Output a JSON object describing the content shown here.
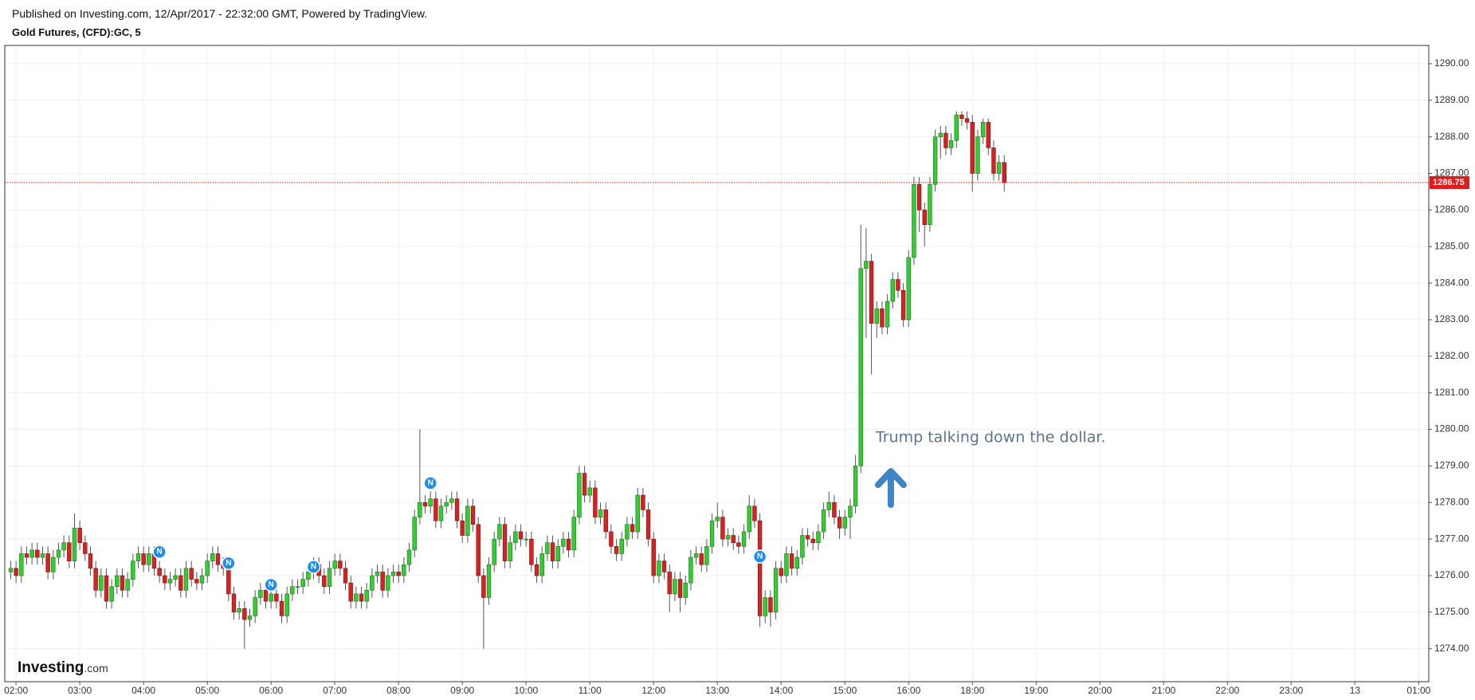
{
  "header": {
    "published": "Published on Investing.com, 12/Apr/2017 - 22:32:00 GMT, Powered by TradingView.",
    "symbol": "Gold Futures, (CFD):GC, 5"
  },
  "logo": {
    "brand": "Investing",
    "suffix": ".com"
  },
  "chart_data": {
    "type": "candlestick",
    "up_color": "#33cc33",
    "down_color": "#d42323",
    "wick_color": "#555555",
    "last_price_color": "#e01b1b",
    "grid": true,
    "xlim": [
      -1.12,
      266.9
    ],
    "xticks": [
      {
        "value": 1,
        "label": "02:00"
      },
      {
        "value": 13,
        "label": "03:00"
      },
      {
        "value": 25,
        "label": "04:00"
      },
      {
        "value": 37,
        "label": "05:00"
      },
      {
        "value": 49,
        "label": "06:00"
      },
      {
        "value": 61,
        "label": "07:00"
      },
      {
        "value": 73,
        "label": "08:00"
      },
      {
        "value": 85,
        "label": "09:00"
      },
      {
        "value": 97,
        "label": "10:00"
      },
      {
        "value": 109,
        "label": "11:00"
      },
      {
        "value": 121,
        "label": "12:00"
      },
      {
        "value": 133,
        "label": "13:00"
      },
      {
        "value": 145,
        "label": "14:00"
      },
      {
        "value": 157,
        "label": "15:00"
      },
      {
        "value": 169,
        "label": "16:00"
      },
      {
        "value": 181,
        "label": "18:00"
      },
      {
        "value": 193,
        "label": "19:00"
      },
      {
        "value": 205,
        "label": "20:00"
      },
      {
        "value": 217,
        "label": "21:00"
      },
      {
        "value": 229,
        "label": "22:00"
      },
      {
        "value": 241,
        "label": "23:00"
      },
      {
        "value": 253,
        "label": "13"
      },
      {
        "value": 265,
        "label": "01:00"
      }
    ],
    "ylim": [
      1273.1,
      1290.5
    ],
    "yticks": [
      {
        "value": 1274,
        "label": "1274.00"
      },
      {
        "value": 1275,
        "label": "1275.00"
      },
      {
        "value": 1276,
        "label": "1276.00"
      },
      {
        "value": 1277,
        "label": "1277.00"
      },
      {
        "value": 1278,
        "label": "1278.00"
      },
      {
        "value": 1279,
        "label": "1279.00"
      },
      {
        "value": 1280,
        "label": "1280.00"
      },
      {
        "value": 1281,
        "label": "1281.00"
      },
      {
        "value": 1282,
        "label": "1282.00"
      },
      {
        "value": 1283,
        "label": "1283.00"
      },
      {
        "value": 1284,
        "label": "1284.00"
      },
      {
        "value": 1285,
        "label": "1285.00"
      },
      {
        "value": 1286,
        "label": "1286.00"
      },
      {
        "value": 1287,
        "label": "1287.00"
      },
      {
        "value": 1288,
        "label": "1288.00"
      },
      {
        "value": 1289,
        "label": "1289.00"
      },
      {
        "value": 1290,
        "label": "1290.00"
      }
    ],
    "last_price": 1286.75,
    "annotation": {
      "text": "Trump talking down the dollar.",
      "x": 162.8,
      "y": 1279.77
    },
    "news": [
      {
        "x": 28,
        "y": 1276.65,
        "label": "N"
      },
      {
        "x": 41,
        "y": 1276.34,
        "label": "N"
      },
      {
        "x": 49,
        "y": 1275.75,
        "label": "N"
      },
      {
        "x": 57,
        "y": 1276.24,
        "label": "N"
      },
      {
        "x": 79,
        "y": 1278.53,
        "label": "N"
      },
      {
        "x": 141,
        "y": 1276.52,
        "label": "N"
      }
    ],
    "candles": [
      [
        1276.1,
        1276.4,
        1275.9,
        1276.2
      ],
      [
        1276.2,
        1276.4,
        1275.8,
        1276.0
      ],
      [
        1276.0,
        1276.8,
        1275.8,
        1276.6
      ],
      [
        1276.6,
        1276.8,
        1276.3,
        1276.5
      ],
      [
        1276.5,
        1276.9,
        1276.3,
        1276.7
      ],
      [
        1276.7,
        1276.9,
        1276.3,
        1276.5
      ],
      [
        1276.5,
        1276.8,
        1276.3,
        1276.6
      ],
      [
        1276.6,
        1276.8,
        1275.9,
        1276.1
      ],
      [
        1276.1,
        1276.7,
        1275.9,
        1276.5
      ],
      [
        1276.5,
        1276.9,
        1276.3,
        1276.7
      ],
      [
        1276.7,
        1277.1,
        1276.5,
        1276.9
      ],
      [
        1276.9,
        1277.1,
        1276.2,
        1276.4
      ],
      [
        1276.4,
        1277.7,
        1276.2,
        1277.3
      ],
      [
        1277.3,
        1277.5,
        1276.7,
        1276.9
      ],
      [
        1276.9,
        1277.1,
        1276.4,
        1276.6
      ],
      [
        1276.6,
        1276.8,
        1276.0,
        1276.2
      ],
      [
        1276.2,
        1276.4,
        1275.4,
        1275.6
      ],
      [
        1275.6,
        1276.2,
        1275.4,
        1276.0
      ],
      [
        1276.0,
        1276.2,
        1275.1,
        1275.3
      ],
      [
        1275.3,
        1275.9,
        1275.1,
        1275.7
      ],
      [
        1275.7,
        1276.2,
        1275.5,
        1276.0
      ],
      [
        1276.0,
        1276.2,
        1275.4,
        1275.6
      ],
      [
        1275.6,
        1276.1,
        1275.4,
        1275.9
      ],
      [
        1275.9,
        1276.6,
        1275.7,
        1276.4
      ],
      [
        1276.4,
        1276.8,
        1276.2,
        1276.6
      ],
      [
        1276.6,
        1276.8,
        1276.1,
        1276.3
      ],
      [
        1276.3,
        1276.8,
        1276.1,
        1276.6
      ],
      [
        1276.6,
        1276.8,
        1276.0,
        1276.2
      ],
      [
        1276.2,
        1276.4,
        1275.8,
        1276.0
      ],
      [
        1276.0,
        1276.2,
        1275.6,
        1275.8
      ],
      [
        1275.8,
        1276.1,
        1275.6,
        1275.9
      ],
      [
        1275.9,
        1276.2,
        1275.7,
        1276.0
      ],
      [
        1276.0,
        1276.2,
        1275.4,
        1275.6
      ],
      [
        1275.6,
        1276.4,
        1275.4,
        1276.2
      ],
      [
        1276.2,
        1276.4,
        1275.7,
        1275.9
      ],
      [
        1275.9,
        1276.1,
        1275.6,
        1275.8
      ],
      [
        1275.8,
        1276.2,
        1275.6,
        1276.0
      ],
      [
        1276.0,
        1276.6,
        1275.8,
        1276.4
      ],
      [
        1276.4,
        1276.8,
        1276.2,
        1276.6
      ],
      [
        1276.6,
        1276.8,
        1276.1,
        1276.3
      ],
      [
        1276.3,
        1276.5,
        1276.0,
        1276.2
      ],
      [
        1276.2,
        1276.4,
        1275.3,
        1275.5
      ],
      [
        1275.5,
        1275.7,
        1274.8,
        1275.0
      ],
      [
        1275.0,
        1275.3,
        1274.8,
        1275.1
      ],
      [
        1275.1,
        1275.3,
        1274.0,
        1274.8
      ],
      [
        1274.8,
        1275.1,
        1274.6,
        1274.9
      ],
      [
        1274.9,
        1275.6,
        1274.7,
        1275.4
      ],
      [
        1275.4,
        1275.8,
        1275.2,
        1275.6
      ],
      [
        1275.6,
        1275.8,
        1275.1,
        1275.3
      ],
      [
        1275.3,
        1275.7,
        1275.1,
        1275.5
      ],
      [
        1275.5,
        1275.7,
        1275.1,
        1275.3
      ],
      [
        1275.3,
        1275.5,
        1274.7,
        1274.9
      ],
      [
        1274.9,
        1275.7,
        1274.7,
        1275.5
      ],
      [
        1275.5,
        1275.9,
        1275.3,
        1275.7
      ],
      [
        1275.7,
        1275.9,
        1275.5,
        1275.7
      ],
      [
        1275.7,
        1276.1,
        1275.5,
        1275.9
      ],
      [
        1275.9,
        1276.3,
        1275.7,
        1276.1
      ],
      [
        1276.1,
        1276.5,
        1275.9,
        1276.3
      ],
      [
        1276.3,
        1276.5,
        1275.8,
        1276.0
      ],
      [
        1276.0,
        1276.2,
        1275.5,
        1275.7
      ],
      [
        1275.7,
        1276.4,
        1275.5,
        1276.2
      ],
      [
        1276.2,
        1276.6,
        1276.0,
        1276.4
      ],
      [
        1276.4,
        1276.6,
        1276.0,
        1276.2
      ],
      [
        1276.2,
        1276.4,
        1275.6,
        1275.8
      ],
      [
        1275.8,
        1276.0,
        1275.1,
        1275.3
      ],
      [
        1275.3,
        1275.7,
        1275.1,
        1275.5
      ],
      [
        1275.5,
        1275.7,
        1275.1,
        1275.3
      ],
      [
        1275.3,
        1275.8,
        1275.1,
        1275.6
      ],
      [
        1275.6,
        1276.2,
        1275.4,
        1276.0
      ],
      [
        1276.0,
        1276.3,
        1275.8,
        1276.1
      ],
      [
        1276.1,
        1276.3,
        1275.4,
        1275.6
      ],
      [
        1275.6,
        1276.2,
        1275.4,
        1276.0
      ],
      [
        1276.0,
        1276.3,
        1275.8,
        1276.1
      ],
      [
        1276.1,
        1276.3,
        1275.8,
        1276.0
      ],
      [
        1276.0,
        1276.5,
        1275.8,
        1276.3
      ],
      [
        1276.3,
        1276.9,
        1276.1,
        1276.7
      ],
      [
        1276.7,
        1277.8,
        1276.5,
        1277.6
      ],
      [
        1277.6,
        1280.0,
        1277.4,
        1278.0
      ],
      [
        1278.0,
        1278.2,
        1277.7,
        1277.9
      ],
      [
        1277.9,
        1278.3,
        1277.7,
        1278.1
      ],
      [
        1278.1,
        1278.3,
        1277.3,
        1277.5
      ],
      [
        1277.5,
        1278.1,
        1277.3,
        1277.9
      ],
      [
        1277.9,
        1278.2,
        1277.7,
        1278.0
      ],
      [
        1278.0,
        1278.3,
        1277.8,
        1278.1
      ],
      [
        1278.1,
        1278.3,
        1277.3,
        1277.5
      ],
      [
        1277.5,
        1277.7,
        1276.9,
        1277.1
      ],
      [
        1277.1,
        1278.1,
        1276.9,
        1277.9
      ],
      [
        1277.9,
        1278.1,
        1277.2,
        1277.4
      ],
      [
        1277.4,
        1277.6,
        1275.8,
        1276.0
      ],
      [
        1276.0,
        1276.2,
        1274.0,
        1275.4
      ],
      [
        1275.4,
        1276.5,
        1275.2,
        1276.3
      ],
      [
        1276.3,
        1277.2,
        1276.1,
        1277.0
      ],
      [
        1277.0,
        1277.6,
        1276.8,
        1277.4
      ],
      [
        1277.4,
        1277.6,
        1276.2,
        1276.4
      ],
      [
        1276.4,
        1277.1,
        1276.2,
        1276.9
      ],
      [
        1276.9,
        1277.4,
        1276.7,
        1277.2
      ],
      [
        1277.2,
        1277.4,
        1276.8,
        1277.0
      ],
      [
        1277.0,
        1277.2,
        1276.8,
        1277.0
      ],
      [
        1277.0,
        1277.2,
        1276.1,
        1276.3
      ],
      [
        1276.3,
        1276.5,
        1275.8,
        1276.0
      ],
      [
        1276.0,
        1276.8,
        1275.8,
        1276.6
      ],
      [
        1276.6,
        1277.1,
        1276.4,
        1276.9
      ],
      [
        1276.9,
        1277.1,
        1276.2,
        1276.4
      ],
      [
        1276.4,
        1277.0,
        1276.2,
        1276.8
      ],
      [
        1276.8,
        1277.2,
        1276.6,
        1277.0
      ],
      [
        1277.0,
        1277.2,
        1276.5,
        1276.7
      ],
      [
        1276.7,
        1277.8,
        1276.5,
        1277.6
      ],
      [
        1277.6,
        1279.0,
        1277.4,
        1278.8
      ],
      [
        1278.8,
        1279.0,
        1278.0,
        1278.2
      ],
      [
        1278.2,
        1278.6,
        1278.0,
        1278.4
      ],
      [
        1278.4,
        1278.6,
        1277.4,
        1277.6
      ],
      [
        1277.6,
        1278.0,
        1277.4,
        1277.8
      ],
      [
        1277.8,
        1278.0,
        1277.0,
        1277.2
      ],
      [
        1277.2,
        1277.4,
        1276.6,
        1276.8
      ],
      [
        1276.8,
        1277.0,
        1276.4,
        1276.6
      ],
      [
        1276.6,
        1277.2,
        1276.4,
        1277.0
      ],
      [
        1277.0,
        1277.6,
        1276.8,
        1277.4
      ],
      [
        1277.4,
        1277.6,
        1277.0,
        1277.2
      ],
      [
        1277.2,
        1278.4,
        1277.0,
        1278.2
      ],
      [
        1278.2,
        1278.4,
        1277.6,
        1277.8
      ],
      [
        1277.8,
        1278.0,
        1276.8,
        1277.0
      ],
      [
        1277.0,
        1277.2,
        1275.8,
        1276.0
      ],
      [
        1276.0,
        1276.6,
        1275.8,
        1276.4
      ],
      [
        1276.4,
        1276.6,
        1275.9,
        1276.1
      ],
      [
        1276.1,
        1276.3,
        1275.0,
        1275.5
      ],
      [
        1275.5,
        1276.1,
        1275.3,
        1275.9
      ],
      [
        1275.9,
        1276.1,
        1275.0,
        1275.4
      ],
      [
        1275.4,
        1276.0,
        1275.2,
        1275.8
      ],
      [
        1275.8,
        1276.7,
        1275.6,
        1276.5
      ],
      [
        1276.5,
        1276.8,
        1276.3,
        1276.6
      ],
      [
        1276.6,
        1276.8,
        1276.1,
        1276.3
      ],
      [
        1276.3,
        1277.0,
        1276.1,
        1276.8
      ],
      [
        1276.8,
        1277.7,
        1276.6,
        1277.5
      ],
      [
        1277.5,
        1278.0,
        1277.3,
        1277.6
      ],
      [
        1277.6,
        1277.8,
        1276.8,
        1277.0
      ],
      [
        1277.0,
        1277.3,
        1276.8,
        1277.1
      ],
      [
        1277.1,
        1277.3,
        1276.7,
        1276.9
      ],
      [
        1276.9,
        1277.1,
        1276.6,
        1276.8
      ],
      [
        1276.8,
        1277.4,
        1276.6,
        1277.2
      ],
      [
        1277.2,
        1278.2,
        1277.0,
        1277.9
      ],
      [
        1277.9,
        1278.1,
        1277.3,
        1277.5
      ],
      [
        1277.5,
        1277.7,
        1274.6,
        1274.9
      ],
      [
        1274.9,
        1275.6,
        1274.7,
        1275.4
      ],
      [
        1275.4,
        1275.6,
        1274.6,
        1275.0
      ],
      [
        1275.0,
        1276.4,
        1274.8,
        1276.2
      ],
      [
        1276.2,
        1276.4,
        1275.8,
        1276.0
      ],
      [
        1276.0,
        1276.8,
        1275.8,
        1276.6
      ],
      [
        1276.6,
        1276.8,
        1276.0,
        1276.2
      ],
      [
        1276.2,
        1276.7,
        1276.0,
        1276.5
      ],
      [
        1276.5,
        1277.3,
        1276.3,
        1277.1
      ],
      [
        1277.1,
        1277.3,
        1276.8,
        1277.0
      ],
      [
        1277.0,
        1277.2,
        1276.7,
        1276.9
      ],
      [
        1276.9,
        1277.4,
        1276.7,
        1277.2
      ],
      [
        1277.2,
        1278.0,
        1277.0,
        1277.8
      ],
      [
        1277.8,
        1278.3,
        1277.6,
        1278.0
      ],
      [
        1278.0,
        1278.2,
        1277.4,
        1277.6
      ],
      [
        1277.6,
        1277.8,
        1277.0,
        1277.3
      ],
      [
        1277.3,
        1277.8,
        1277.1,
        1277.6
      ],
      [
        1277.6,
        1278.1,
        1277.0,
        1277.9
      ],
      [
        1277.9,
        1279.3,
        1277.7,
        1279.0
      ],
      [
        1279.0,
        1285.6,
        1278.8,
        1284.4
      ],
      [
        1284.4,
        1285.5,
        1282.5,
        1284.6
      ],
      [
        1284.6,
        1284.8,
        1281.5,
        1282.9
      ],
      [
        1282.9,
        1283.5,
        1282.5,
        1283.3
      ],
      [
        1283.3,
        1283.5,
        1282.6,
        1282.8
      ],
      [
        1282.8,
        1283.7,
        1282.6,
        1283.5
      ],
      [
        1283.5,
        1284.3,
        1283.3,
        1284.1
      ],
      [
        1284.1,
        1284.3,
        1283.6,
        1283.8
      ],
      [
        1283.8,
        1284.0,
        1282.8,
        1283.0
      ],
      [
        1283.0,
        1284.9,
        1282.8,
        1284.7
      ],
      [
        1284.7,
        1286.9,
        1284.5,
        1286.7
      ],
      [
        1286.7,
        1286.9,
        1285.4,
        1286.0
      ],
      [
        1286.0,
        1286.2,
        1285.0,
        1285.6
      ],
      [
        1285.6,
        1286.9,
        1285.4,
        1286.7
      ],
      [
        1286.7,
        1288.2,
        1286.5,
        1288.0
      ],
      [
        1288.0,
        1288.3,
        1287.4,
        1288.1
      ],
      [
        1288.1,
        1288.3,
        1287.5,
        1287.7
      ],
      [
        1287.7,
        1288.1,
        1287.5,
        1287.9
      ],
      [
        1287.9,
        1288.7,
        1287.7,
        1288.6
      ],
      [
        1288.6,
        1288.7,
        1288.3,
        1288.5
      ],
      [
        1288.5,
        1288.7,
        1288.2,
        1288.4
      ],
      [
        1288.4,
        1288.6,
        1286.5,
        1287.0
      ],
      [
        1287.0,
        1288.2,
        1286.8,
        1288.0
      ],
      [
        1288.0,
        1288.5,
        1287.8,
        1288.4
      ],
      [
        1288.4,
        1288.5,
        1287.5,
        1287.7
      ],
      [
        1287.7,
        1287.9,
        1286.8,
        1287.0
      ],
      [
        1287.0,
        1287.5,
        1286.8,
        1287.3
      ],
      [
        1287.3,
        1287.5,
        1286.5,
        1286.75
      ]
    ]
  }
}
